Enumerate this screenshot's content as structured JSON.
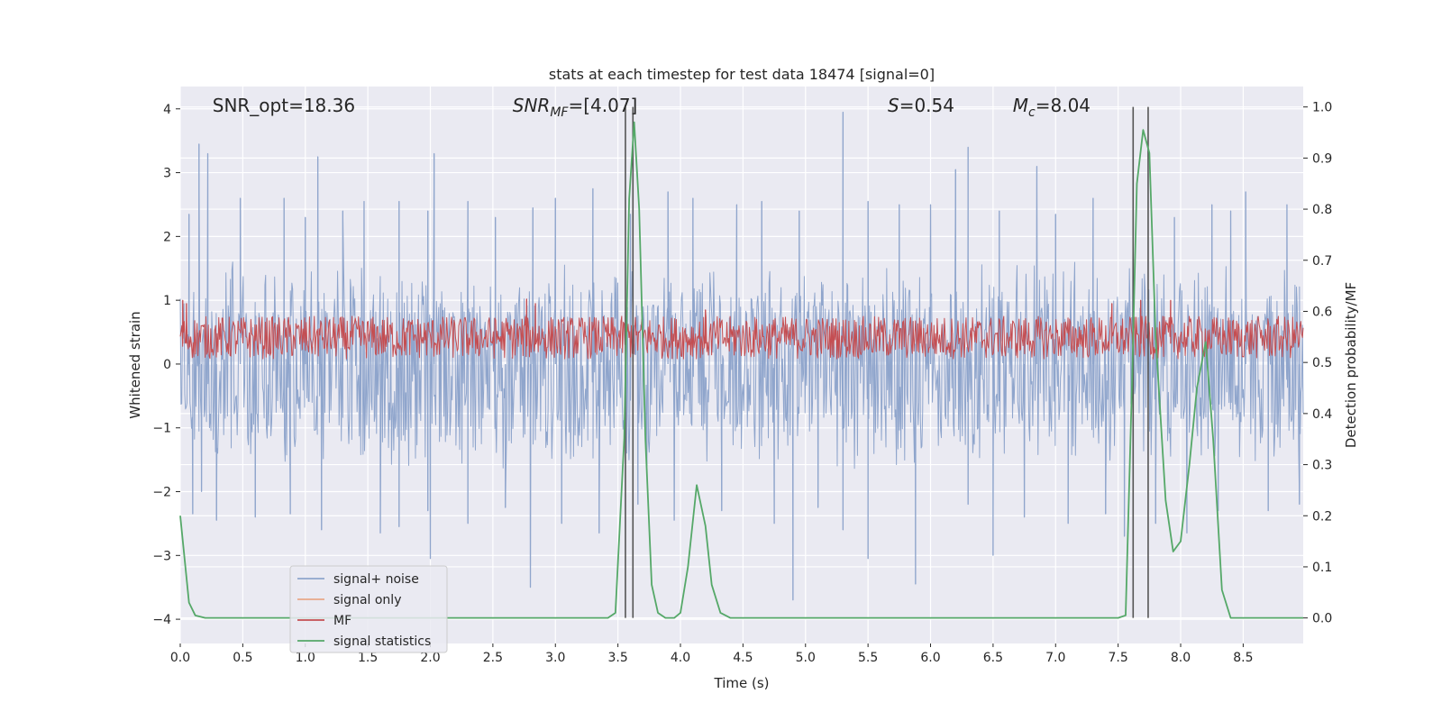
{
  "chart_data": {
    "type": "line",
    "title": "stats at each timestep for test data 18474 [signal=0]",
    "xlabel": "Time (s)",
    "ylabel_left": "Whitened strain",
    "ylabel_right": "Detection probability/MF",
    "xlim": [
      0,
      8.98
    ],
    "ylim_left": [
      -4.38,
      4.35
    ],
    "ylim_right": [
      -0.05,
      1.04
    ],
    "grid": true,
    "legend_position": "lower-left",
    "x_ticks": [
      0.0,
      0.5,
      1.0,
      1.5,
      2.0,
      2.5,
      3.0,
      3.5,
      4.0,
      4.5,
      5.0,
      5.5,
      6.0,
      6.5,
      7.0,
      7.5,
      8.0,
      8.5
    ],
    "x_tick_labels": [
      "0.0",
      "0.5",
      "1.0",
      "1.5",
      "2.0",
      "2.5",
      "3.0",
      "3.5",
      "4.0",
      "4.5",
      "5.0",
      "5.5",
      "6.0",
      "6.5",
      "7.0",
      "7.5",
      "8.0",
      "8.5"
    ],
    "y_left_ticks": [
      -4,
      -3,
      -2,
      -1,
      0,
      1,
      2,
      3,
      4
    ],
    "y_left_tick_labels": [
      "−4",
      "−3",
      "−2",
      "−1",
      "0",
      "1",
      "2",
      "3",
      "4"
    ],
    "y_right_ticks": [
      0.0,
      0.1,
      0.2,
      0.3,
      0.4,
      0.5,
      0.6,
      0.7,
      0.8,
      0.9,
      1.0
    ],
    "y_right_tick_labels": [
      "0.0",
      "0.1",
      "0.2",
      "0.3",
      "0.4",
      "0.5",
      "0.6",
      "0.7",
      "0.8",
      "0.9",
      "1.0"
    ],
    "annotations": [
      {
        "name": "snr-opt",
        "text": "SNR_opt=18.36",
        "x": 0.2
      },
      {
        "name": "snr-mf",
        "text": "SNR",
        "sub": "MF",
        "suffix": "=[4.07]",
        "italic": true,
        "x": 2.6
      },
      {
        "name": "s-value",
        "text": "S",
        "suffix": "=0.54",
        "italic": true,
        "x": 5.6
      },
      {
        "name": "mc-value",
        "text": "M",
        "sub": "c",
        "suffix": "=8.04",
        "italic": true,
        "x": 6.6
      }
    ],
    "legend": [
      {
        "label": "signal+ noise",
        "color": "#8fa5cc"
      },
      {
        "label": "signal only",
        "color": "#e8a888"
      },
      {
        "label": "MF",
        "color": "#c44e52"
      },
      {
        "label": "signal statistics",
        "color": "#55a868"
      }
    ],
    "series": [
      {
        "name": "signal+ noise",
        "axis": "left",
        "color": "#8fa5cc",
        "style": "dense-noise",
        "sample_count": 1500,
        "envelope_positive": 1.55,
        "envelope_negative": -1.6,
        "spikes": [
          {
            "x": 0.07,
            "y": 2.35
          },
          {
            "x": 0.1,
            "y": -2.35
          },
          {
            "x": 0.15,
            "y": 3.45
          },
          {
            "x": 0.17,
            "y": -2.0
          },
          {
            "x": 0.22,
            "y": 3.3
          },
          {
            "x": 0.29,
            "y": -2.45
          },
          {
            "x": 0.48,
            "y": 2.6
          },
          {
            "x": 0.6,
            "y": -2.4
          },
          {
            "x": 0.83,
            "y": 2.6
          },
          {
            "x": 0.88,
            "y": -2.35
          },
          {
            "x": 1.0,
            "y": 2.3
          },
          {
            "x": 1.1,
            "y": 3.25
          },
          {
            "x": 1.13,
            "y": -2.6
          },
          {
            "x": 1.3,
            "y": 2.4
          },
          {
            "x": 1.47,
            "y": 2.55
          },
          {
            "x": 1.6,
            "y": -2.65
          },
          {
            "x": 1.75,
            "y": 2.55
          },
          {
            "x": 1.75,
            "y": -2.55
          },
          {
            "x": 1.98,
            "y": -2.3
          },
          {
            "x": 1.98,
            "y": 2.4
          },
          {
            "x": 2.0,
            "y": -3.05
          },
          {
            "x": 2.03,
            "y": 3.3
          },
          {
            "x": 2.3,
            "y": 2.55
          },
          {
            "x": 2.3,
            "y": -2.5
          },
          {
            "x": 2.52,
            "y": 2.3
          },
          {
            "x": 2.6,
            "y": -2.25
          },
          {
            "x": 2.82,
            "y": 2.45
          },
          {
            "x": 2.8,
            "y": -3.5
          },
          {
            "x": 3.0,
            "y": 2.6
          },
          {
            "x": 3.05,
            "y": -2.5
          },
          {
            "x": 3.3,
            "y": 2.75
          },
          {
            "x": 3.35,
            "y": -2.65
          },
          {
            "x": 3.6,
            "y": 2.35
          },
          {
            "x": 3.66,
            "y": -2.2
          },
          {
            "x": 3.9,
            "y": 2.7
          },
          {
            "x": 3.95,
            "y": -2.45
          },
          {
            "x": 4.1,
            "y": 2.6
          },
          {
            "x": 4.33,
            "y": -2.3
          },
          {
            "x": 4.45,
            "y": 2.5
          },
          {
            "x": 4.65,
            "y": 2.55
          },
          {
            "x": 4.75,
            "y": -2.5
          },
          {
            "x": 4.9,
            "y": -3.7
          },
          {
            "x": 4.95,
            "y": 2.4
          },
          {
            "x": 5.1,
            "y": -2.25
          },
          {
            "x": 5.3,
            "y": 3.95
          },
          {
            "x": 5.3,
            "y": -2.6
          },
          {
            "x": 5.5,
            "y": -3.05
          },
          {
            "x": 5.5,
            "y": 2.55
          },
          {
            "x": 5.75,
            "y": 2.5
          },
          {
            "x": 5.88,
            "y": -3.45
          },
          {
            "x": 6.0,
            "y": 2.5
          },
          {
            "x": 6.2,
            "y": 3.05
          },
          {
            "x": 6.3,
            "y": 3.4
          },
          {
            "x": 6.3,
            "y": -2.2
          },
          {
            "x": 6.5,
            "y": -3.0
          },
          {
            "x": 6.55,
            "y": 2.4
          },
          {
            "x": 6.75,
            "y": -2.4
          },
          {
            "x": 6.85,
            "y": 3.1
          },
          {
            "x": 7.0,
            "y": 2.35
          },
          {
            "x": 7.1,
            "y": -2.5
          },
          {
            "x": 7.3,
            "y": 2.6
          },
          {
            "x": 7.4,
            "y": -2.35
          },
          {
            "x": 7.55,
            "y": -2.7
          },
          {
            "x": 7.62,
            "y": 2.7
          },
          {
            "x": 7.8,
            "y": -2.5
          },
          {
            "x": 7.95,
            "y": 2.3
          },
          {
            "x": 8.05,
            "y": -2.65
          },
          {
            "x": 8.25,
            "y": 2.5
          },
          {
            "x": 8.3,
            "y": -2.3
          },
          {
            "x": 8.4,
            "y": 2.4
          },
          {
            "x": 8.52,
            "y": 2.7
          },
          {
            "x": 8.7,
            "y": -2.3
          },
          {
            "x": 8.85,
            "y": 2.5
          },
          {
            "x": 8.95,
            "y": -2.2
          }
        ]
      },
      {
        "name": "MF",
        "axis": "left",
        "color": "#c44e52",
        "style": "dense-noise",
        "sample_count": 1400,
        "baseline": 0.32,
        "band_max": 0.75,
        "band_min": 0.08,
        "spikes": [
          {
            "x": 0.02,
            "y": 1.0
          },
          {
            "x": 0.05,
            "y": 0.95
          },
          {
            "x": 2.77,
            "y": 1.02
          },
          {
            "x": 2.84,
            "y": 0.95
          },
          {
            "x": 4.2,
            "y": 0.85
          },
          {
            "x": 7.45,
            "y": 0.95
          },
          {
            "x": 7.68,
            "y": 1.0
          },
          {
            "x": 7.92,
            "y": 1.0
          }
        ]
      },
      {
        "name": "signal statistics",
        "axis": "right",
        "color": "#55a868",
        "points": [
          [
            0.0,
            0.2
          ],
          [
            0.07,
            0.03
          ],
          [
            0.12,
            0.005
          ],
          [
            0.2,
            0.0
          ],
          [
            1.0,
            0.0
          ],
          [
            2.0,
            0.0
          ],
          [
            3.0,
            0.0
          ],
          [
            3.42,
            0.0
          ],
          [
            3.48,
            0.01
          ],
          [
            3.55,
            0.35
          ],
          [
            3.59,
            0.82
          ],
          [
            3.63,
            0.97
          ],
          [
            3.67,
            0.8
          ],
          [
            3.72,
            0.35
          ],
          [
            3.77,
            0.065
          ],
          [
            3.82,
            0.01
          ],
          [
            3.88,
            0.0
          ],
          [
            3.95,
            0.0
          ],
          [
            4.0,
            0.01
          ],
          [
            4.06,
            0.1
          ],
          [
            4.13,
            0.26
          ],
          [
            4.2,
            0.18
          ],
          [
            4.25,
            0.065
          ],
          [
            4.32,
            0.01
          ],
          [
            4.4,
            0.0
          ],
          [
            5.0,
            0.0
          ],
          [
            6.0,
            0.0
          ],
          [
            7.0,
            0.0
          ],
          [
            7.5,
            0.0
          ],
          [
            7.56,
            0.005
          ],
          [
            7.61,
            0.45
          ],
          [
            7.65,
            0.85
          ],
          [
            7.7,
            0.955
          ],
          [
            7.75,
            0.91
          ],
          [
            7.8,
            0.55
          ],
          [
            7.88,
            0.23
          ],
          [
            7.94,
            0.13
          ],
          [
            8.0,
            0.15
          ],
          [
            8.07,
            0.3
          ],
          [
            8.13,
            0.45
          ],
          [
            8.2,
            0.54
          ],
          [
            8.26,
            0.35
          ],
          [
            8.33,
            0.055
          ],
          [
            8.4,
            0.0
          ],
          [
            8.98,
            0.0
          ]
        ]
      }
    ],
    "markers": [
      {
        "x": 3.56,
        "axis": "right",
        "y_top": 1.0,
        "y_bottom": 0.0,
        "color": "#555555"
      },
      {
        "x": 3.62,
        "axis": "right",
        "y_top": 1.0,
        "y_bottom": 0.0,
        "color": "#555555"
      },
      {
        "x": 7.62,
        "axis": "right",
        "y_top": 1.0,
        "y_bottom": 0.0,
        "color": "#555555"
      },
      {
        "x": 7.74,
        "axis": "right",
        "y_top": 1.0,
        "y_bottom": 0.0,
        "color": "#555555"
      }
    ]
  }
}
